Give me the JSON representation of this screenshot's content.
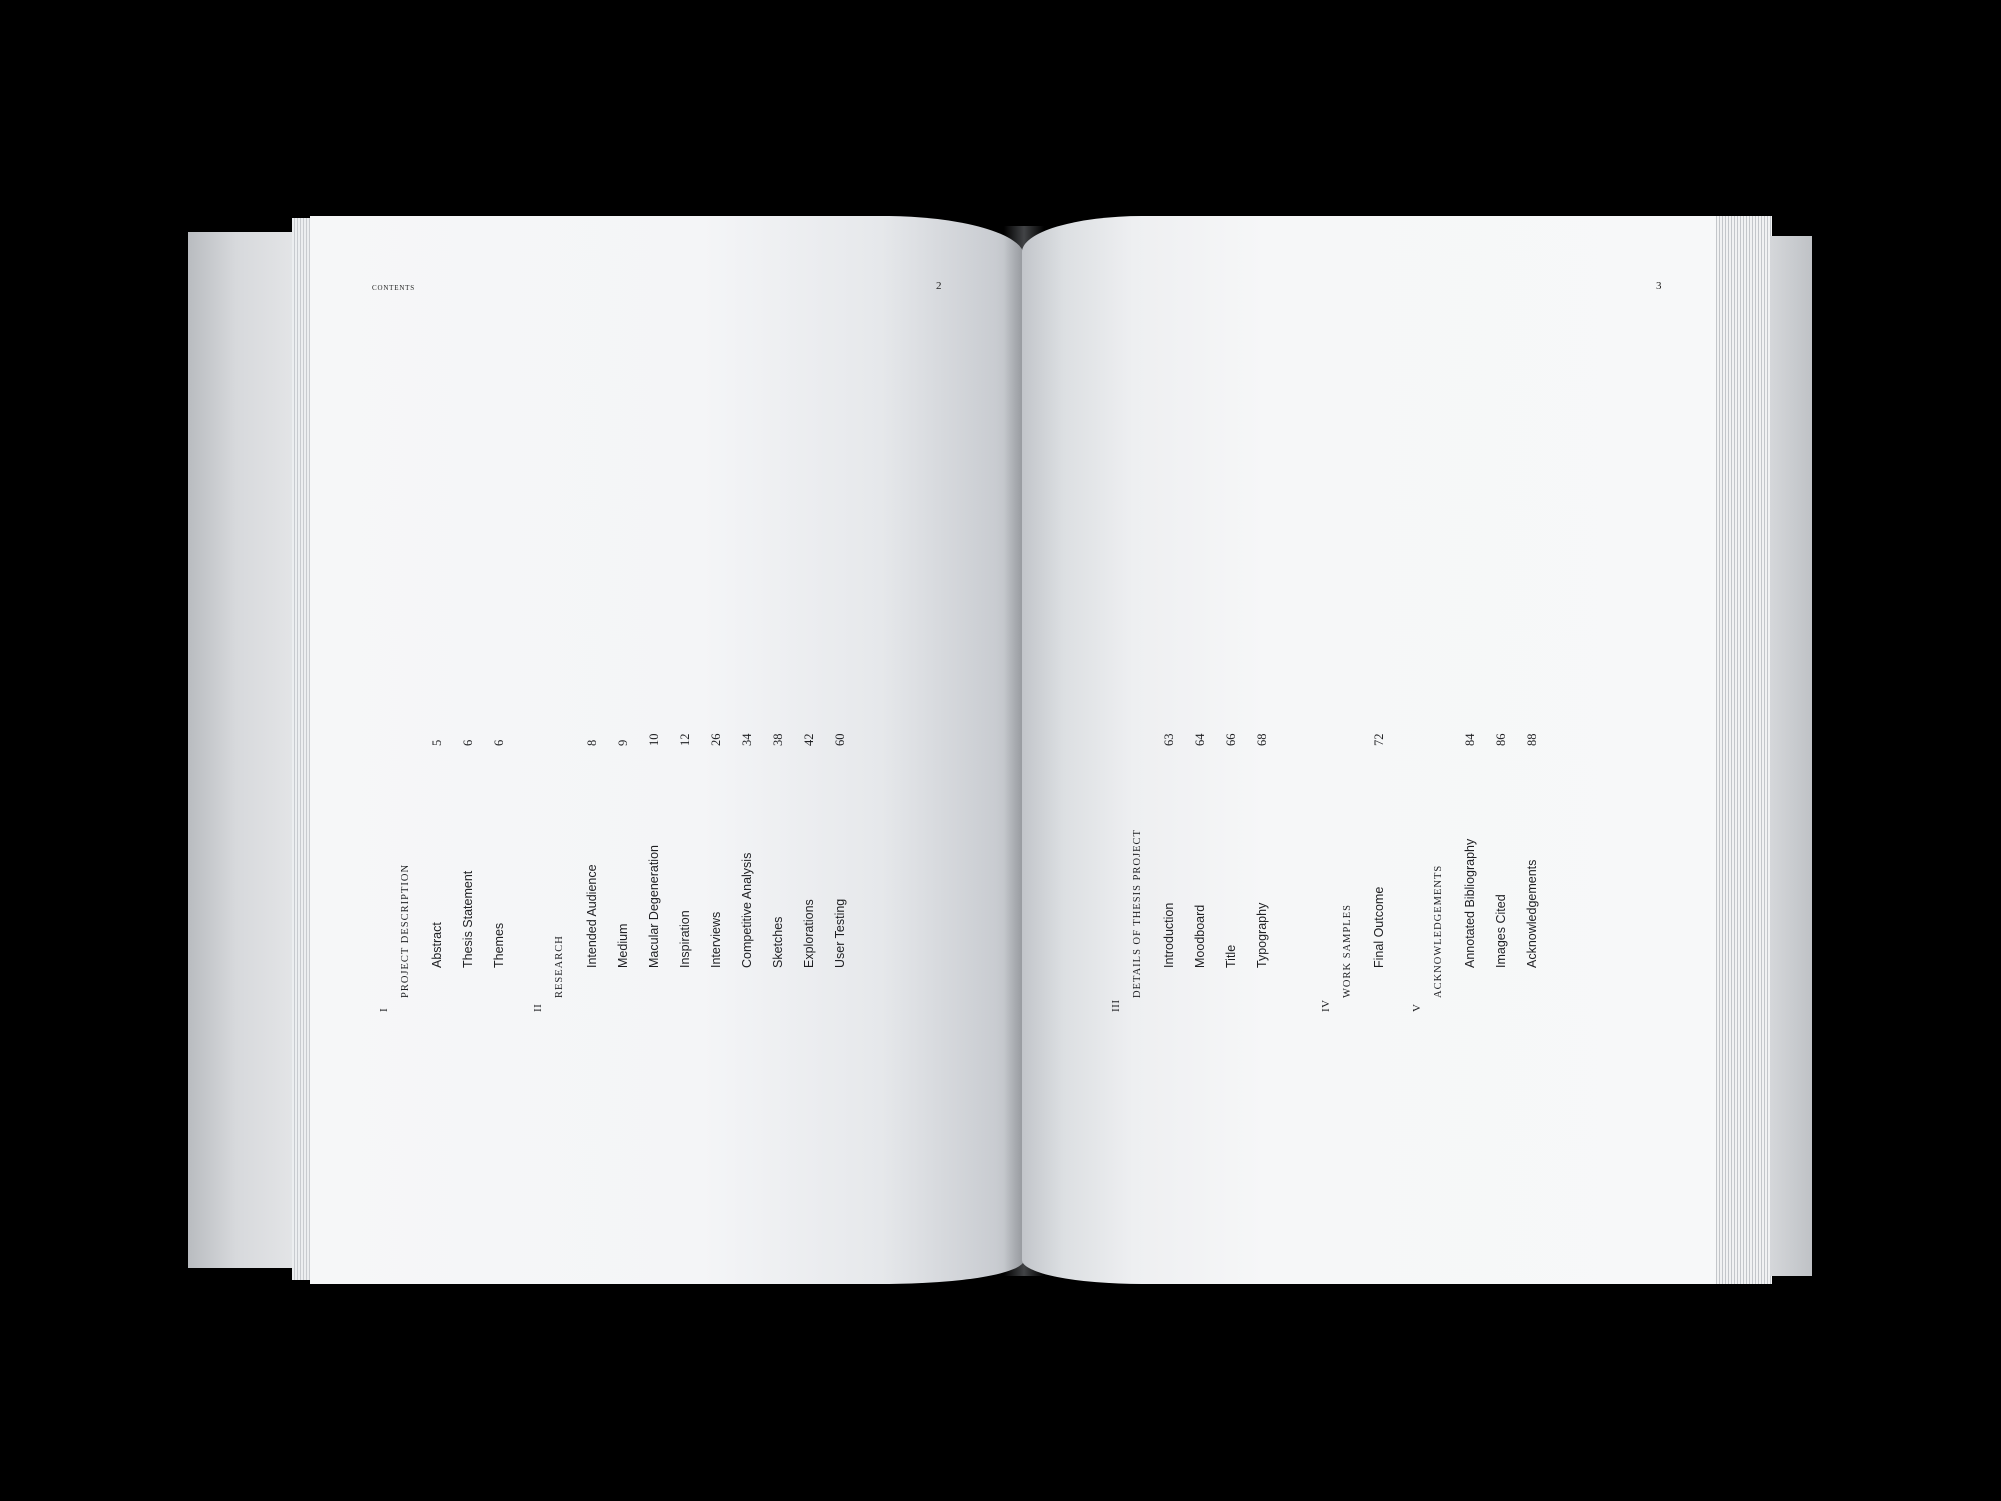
{
  "running_head": "contents",
  "left_folio": "2",
  "right_folio": "3",
  "sections": [
    {
      "numeral": "I",
      "title": "PROJECT DESCRIPTION",
      "entries": [
        {
          "label": "Abstract",
          "page": "5"
        },
        {
          "label": "Thesis Statement",
          "page": "6"
        },
        {
          "label": "Themes",
          "page": "6"
        }
      ]
    },
    {
      "numeral": "II",
      "title": "RESEARCH",
      "entries": [
        {
          "label": "Intended Audience",
          "page": "8"
        },
        {
          "label": "Medium",
          "page": "9"
        },
        {
          "label": "Macular Degeneration",
          "page": "10"
        },
        {
          "label": "Inspiration",
          "page": "12"
        },
        {
          "label": "Interviews",
          "page": "26"
        },
        {
          "label": "Competitive Analysis",
          "page": "34"
        },
        {
          "label": "Sketches",
          "page": "38"
        },
        {
          "label": "Explorations",
          "page": "42"
        },
        {
          "label": "User Testing",
          "page": "60"
        }
      ]
    },
    {
      "numeral": "III",
      "title": "DETAILS OF THESIS PROJECT",
      "entries": [
        {
          "label": "Introduction",
          "page": "63"
        },
        {
          "label": "Moodboard",
          "page": "64"
        },
        {
          "label": "Title",
          "page": "66"
        },
        {
          "label": "Typography",
          "page": "68"
        }
      ]
    },
    {
      "numeral": "IV",
      "title": "WORK SAMPLES",
      "entries": [
        {
          "label": "Final Outcome",
          "page": "72"
        }
      ]
    },
    {
      "numeral": "V",
      "title": "ACKNOWLEDGEMENTS",
      "entries": [
        {
          "label": "Annotated Bibliography",
          "page": "84"
        },
        {
          "label": "Images Cited",
          "page": "86"
        },
        {
          "label": "Acknowledgements",
          "page": "88"
        }
      ]
    }
  ]
}
